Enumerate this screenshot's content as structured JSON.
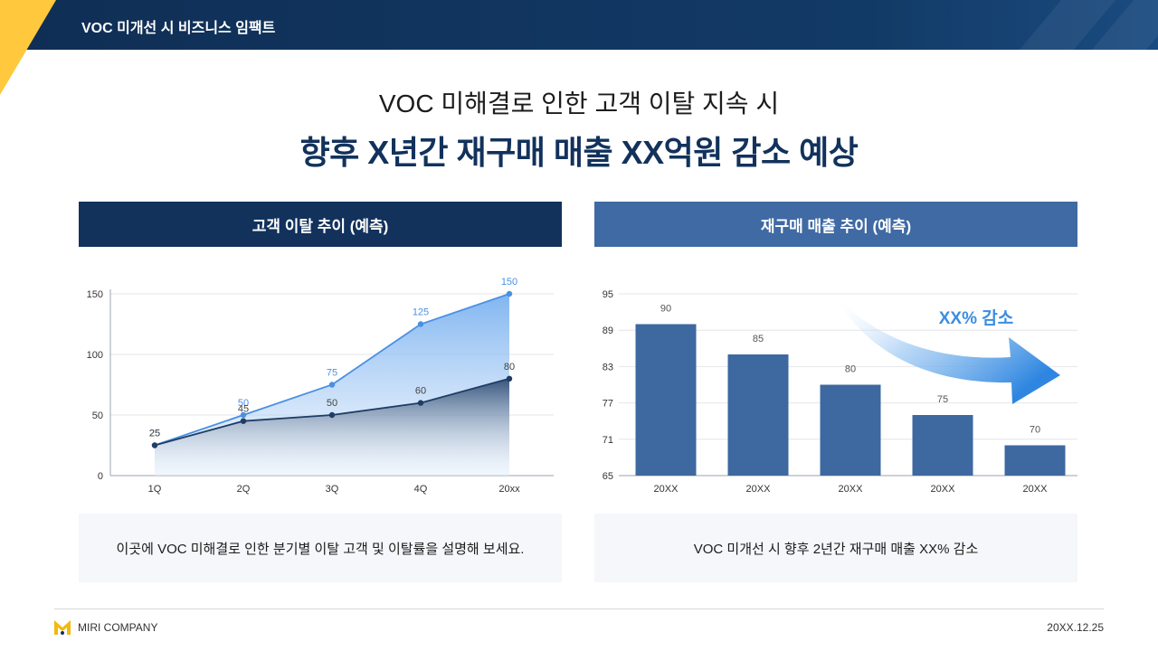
{
  "header": {
    "title": "VOC 미개선 시 비즈니스 임팩트"
  },
  "headline": {
    "sub": "VOC 미해결로 인한 고객 이탈 지속 시",
    "main": "향후 X년간 재구매 매출 XX억원 감소 예상"
  },
  "panels": [
    {
      "title": "고객 이탈 추이 (예측)",
      "note": "이곳에 VOC 미해결로 인한 분기별 이탈 고객 및 이탈률을 설명해 보세요."
    },
    {
      "title": "재구매 매출 추이 (예측)",
      "note": "VOC 미개선 시 향후 2년간 재구매 매출 XX% 감소"
    }
  ],
  "chart_data": [
    {
      "type": "area",
      "categories": [
        "1Q",
        "2Q",
        "3Q",
        "4Q",
        "20xx"
      ],
      "series": [
        {
          "values": [
            25,
            50,
            75,
            125,
            150
          ],
          "color": "#4a90e2"
        },
        {
          "values": [
            25,
            45,
            50,
            60,
            80
          ],
          "color": "#1f3d66"
        }
      ],
      "yticks": [
        0,
        50,
        100,
        150
      ],
      "ylim": [
        0,
        150
      ],
      "grid": true
    },
    {
      "type": "bar",
      "categories": [
        "20XX",
        "20XX",
        "20XX",
        "20XX",
        "20XX"
      ],
      "values": [
        90,
        85,
        80,
        75,
        70
      ],
      "yticks": [
        65,
        71,
        77,
        83,
        89,
        95
      ],
      "ylim": [
        65,
        95
      ],
      "color": "#3d68a0",
      "annotation": "XX% 감소",
      "grid": true
    }
  ],
  "footer": {
    "company": "MIRI COMPANY",
    "date": "20XX.12.25"
  },
  "colors": {
    "navy": "#12325c",
    "accent": "#ffc83d",
    "blue": "#3f6aa3"
  }
}
